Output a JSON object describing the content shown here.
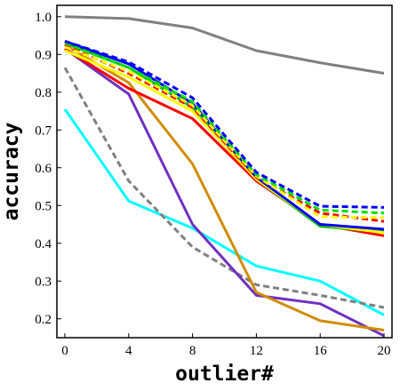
{
  "chart_data": {
    "type": "line",
    "title": "",
    "xlabel": "outlier#",
    "ylabel": "accuracy",
    "x": [
      0,
      4,
      8,
      12,
      16,
      20
    ],
    "x_ticks": [
      "0",
      "4",
      "8",
      "12",
      "16",
      "20"
    ],
    "y_ticks": [
      "0.2",
      "0.3",
      "0.4",
      "0.5",
      "0.6",
      "0.7",
      "0.8",
      "0.9",
      "1.0"
    ],
    "xlim": [
      -0.5,
      20.5
    ],
    "ylim": [
      0.15,
      1.03
    ],
    "grid": false,
    "legend": "none",
    "series": [
      {
        "color": "#808080",
        "dash": false,
        "values": [
          1.0,
          0.995,
          0.97,
          0.91,
          0.878,
          0.85
        ]
      },
      {
        "color": "#00ffff",
        "dash": false,
        "values": [
          0.755,
          0.512,
          0.44,
          0.34,
          0.3,
          0.21
        ]
      },
      {
        "color": "#808080",
        "dash": true,
        "values": [
          0.865,
          0.565,
          0.39,
          0.29,
          0.262,
          0.23
        ]
      },
      {
        "color": "#7030c0",
        "dash": false,
        "values": [
          0.915,
          0.795,
          0.45,
          0.262,
          0.24,
          0.155
        ]
      },
      {
        "color": "#d08c00",
        "dash": false,
        "values": [
          0.925,
          0.825,
          0.61,
          0.27,
          0.195,
          0.17
        ]
      },
      {
        "color": "#ff0000",
        "dash": false,
        "values": [
          0.915,
          0.81,
          0.73,
          0.565,
          0.45,
          0.42
        ]
      },
      {
        "color": "#00c000",
        "dash": false,
        "values": [
          0.93,
          0.865,
          0.76,
          0.57,
          0.445,
          0.43
        ]
      },
      {
        "color": "#ffff00",
        "dash": false,
        "values": [
          0.91,
          0.84,
          0.75,
          0.57,
          0.45,
          0.428
        ]
      },
      {
        "color": "#0000ff",
        "dash": false,
        "values": [
          0.935,
          0.875,
          0.77,
          0.575,
          0.45,
          0.437
        ]
      },
      {
        "color": "#ff0000",
        "dash": true,
        "values": [
          0.925,
          0.85,
          0.76,
          0.575,
          0.48,
          0.458
        ]
      },
      {
        "color": "#ffff00",
        "dash": true,
        "values": [
          0.92,
          0.855,
          0.765,
          0.578,
          0.47,
          0.468
        ]
      },
      {
        "color": "#00e000",
        "dash": true,
        "values": [
          0.93,
          0.865,
          0.775,
          0.582,
          0.488,
          0.48
        ]
      },
      {
        "color": "#0000ff",
        "dash": true,
        "values": [
          0.935,
          0.88,
          0.785,
          0.588,
          0.498,
          0.495
        ]
      }
    ]
  }
}
